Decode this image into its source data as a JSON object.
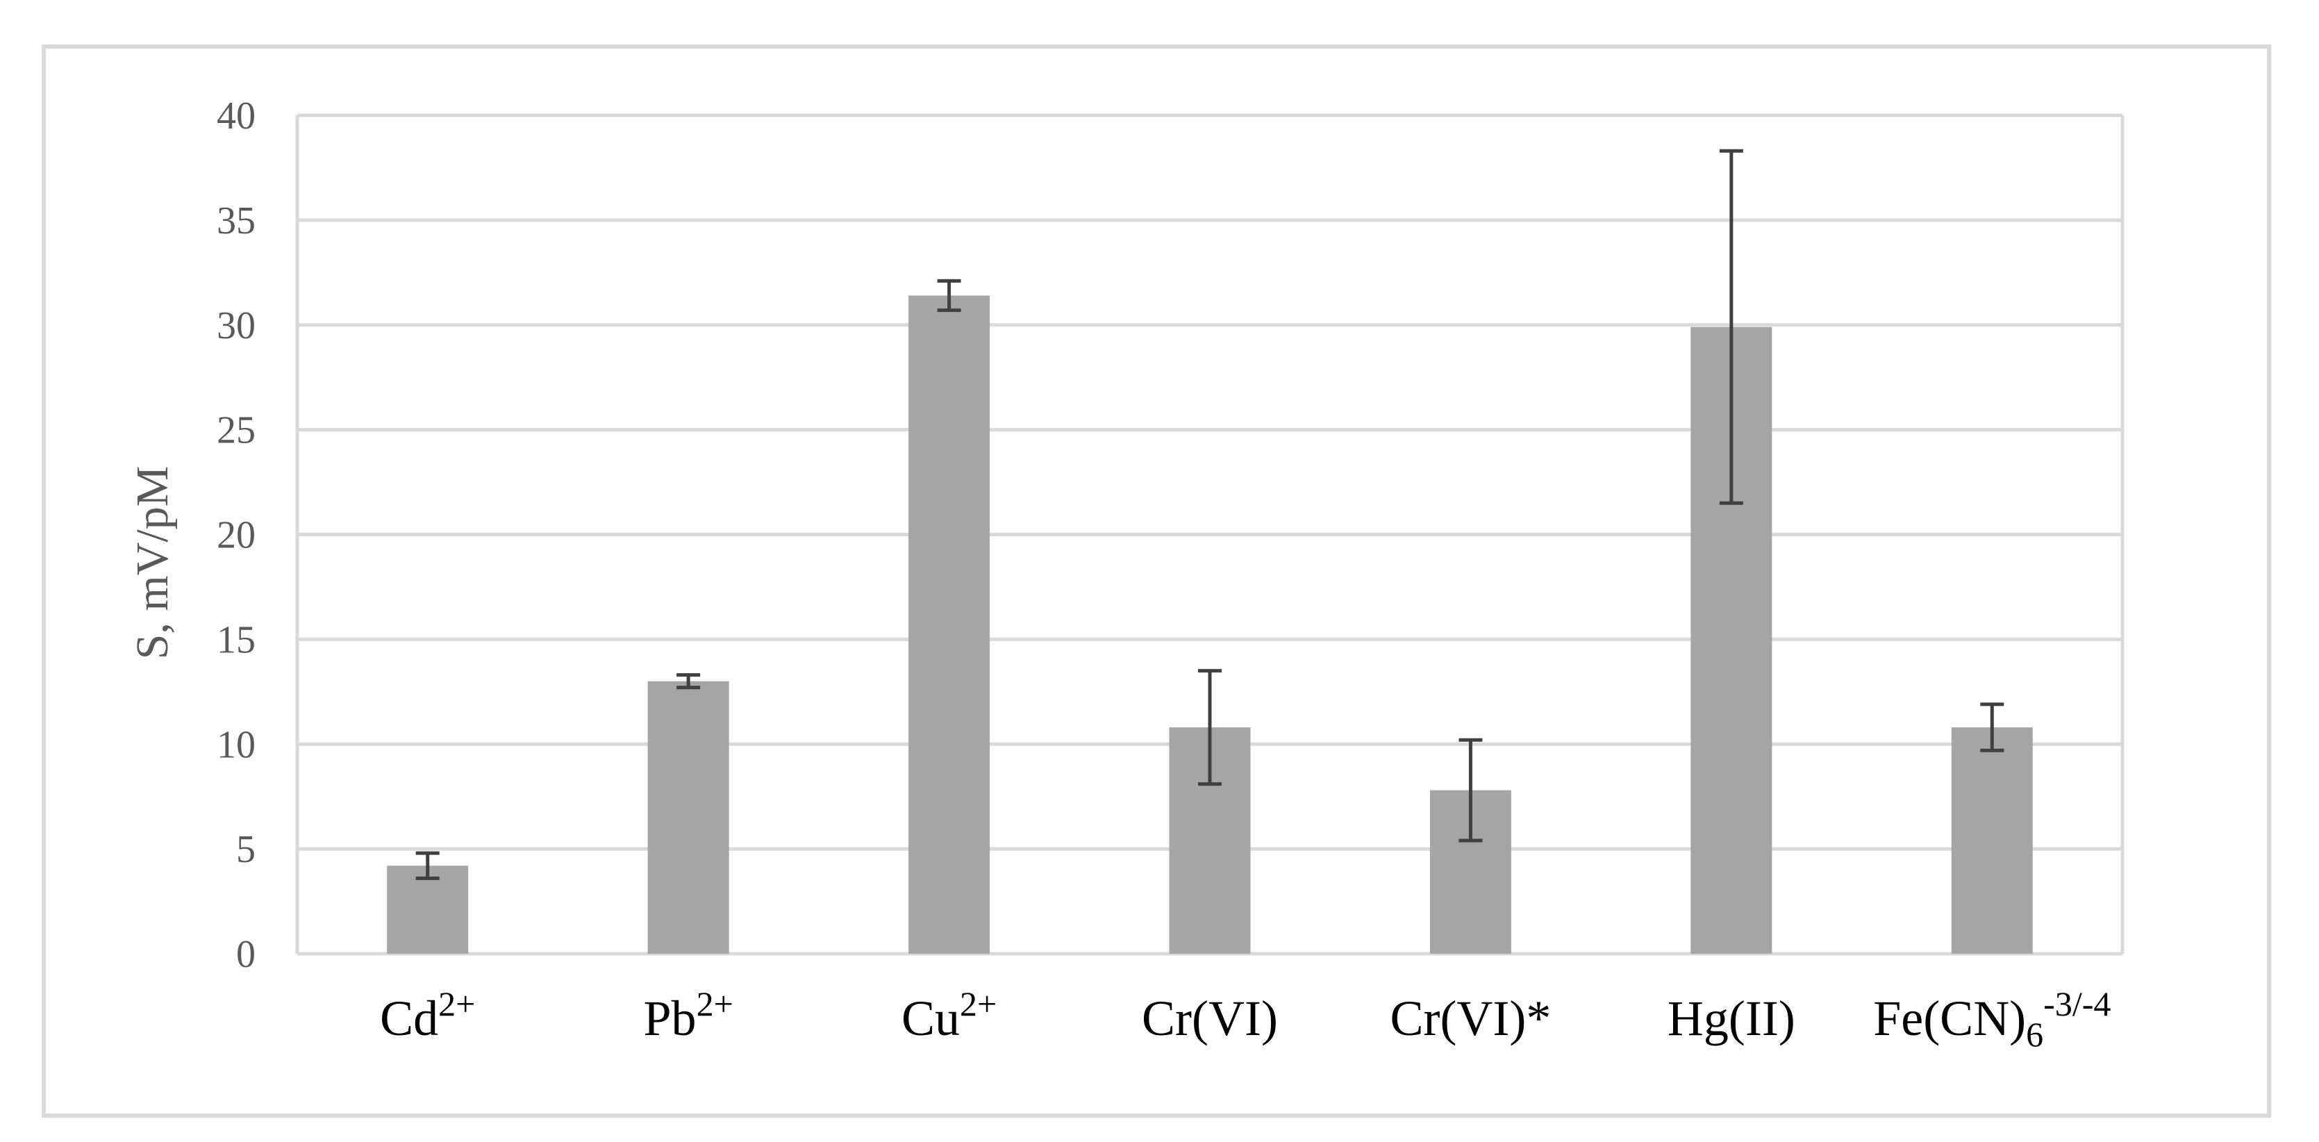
{
  "chart_data": {
    "type": "bar",
    "title": "",
    "xlabel": "",
    "ylabel": "S, mV/pM",
    "ylim": [
      0,
      40
    ],
    "yticks": [
      0,
      5,
      10,
      15,
      20,
      25,
      30,
      35,
      40
    ],
    "grid": true,
    "legend": "none",
    "categories": [
      {
        "base": "Cd",
        "sup": "2+",
        "sub": ""
      },
      {
        "base": "Pb",
        "sup": "2+",
        "sub": ""
      },
      {
        "base": "Cu",
        "sup": "2+",
        "sub": ""
      },
      {
        "base": "Cr(VI)",
        "sup": "",
        "sub": ""
      },
      {
        "base": "Cr(VI)*",
        "sup": "",
        "sub": ""
      },
      {
        "base": "Hg(II)",
        "sup": "",
        "sub": ""
      },
      {
        "base": "Fe(CN)",
        "sub": "6",
        "sup": "-3/-4"
      }
    ],
    "values": [
      4.2,
      13.0,
      31.4,
      10.8,
      7.8,
      29.9,
      10.8
    ],
    "errors": [
      0.6,
      0.3,
      0.7,
      2.7,
      2.4,
      8.4,
      1.1
    ],
    "colors": {
      "bar": "#a5a5a5",
      "error_bar": "#404040",
      "grid": "#d9d9d9",
      "tick_text": "#595959",
      "category_text": "#000000"
    }
  }
}
